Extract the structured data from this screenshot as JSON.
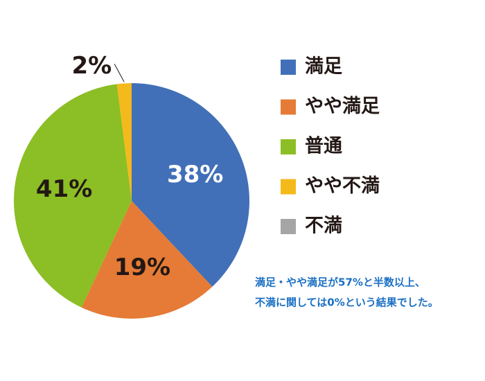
{
  "chart_data": {
    "type": "pie",
    "categories": [
      "満足",
      "やや満足",
      "普通",
      "やや不満",
      "不満"
    ],
    "values": [
      38,
      19,
      41,
      2,
      0
    ],
    "value_labels": [
      "38%",
      "19%",
      "41%",
      "2%",
      null
    ],
    "colors": [
      "#4170b8",
      "#e57b36",
      "#8cbe25",
      "#f4b91a",
      "#a5a5a5"
    ],
    "label_colors": [
      "#ffffff",
      "#231815",
      "#231815",
      "#231815",
      "#231815"
    ],
    "annotation": [
      "満足・やや満足が57%と半数以上、",
      "不満に関しては0%という結果でした。"
    ]
  }
}
